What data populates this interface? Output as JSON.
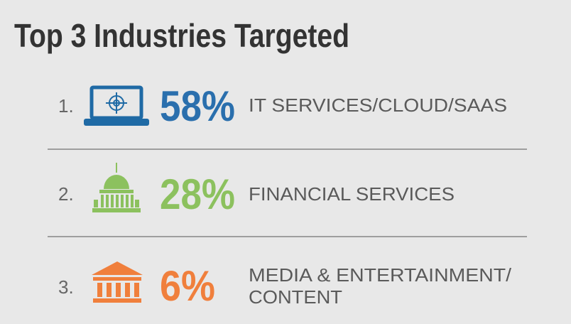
{
  "header": {
    "title": "Top 3 Industries Targeted"
  },
  "items": [
    {
      "rank": "1.",
      "value": "58%",
      "label_lines": [
        "IT SERVICES/CLOUD/SAAS"
      ]
    },
    {
      "rank": "2.",
      "value": "28%",
      "label_lines": [
        "FINANCIAL SERVICES"
      ]
    },
    {
      "rank": "3.",
      "value": "6%",
      "label_lines": [
        "MEDIA & ENTERTAINMENT/",
        "CONTENT"
      ]
    }
  ]
}
